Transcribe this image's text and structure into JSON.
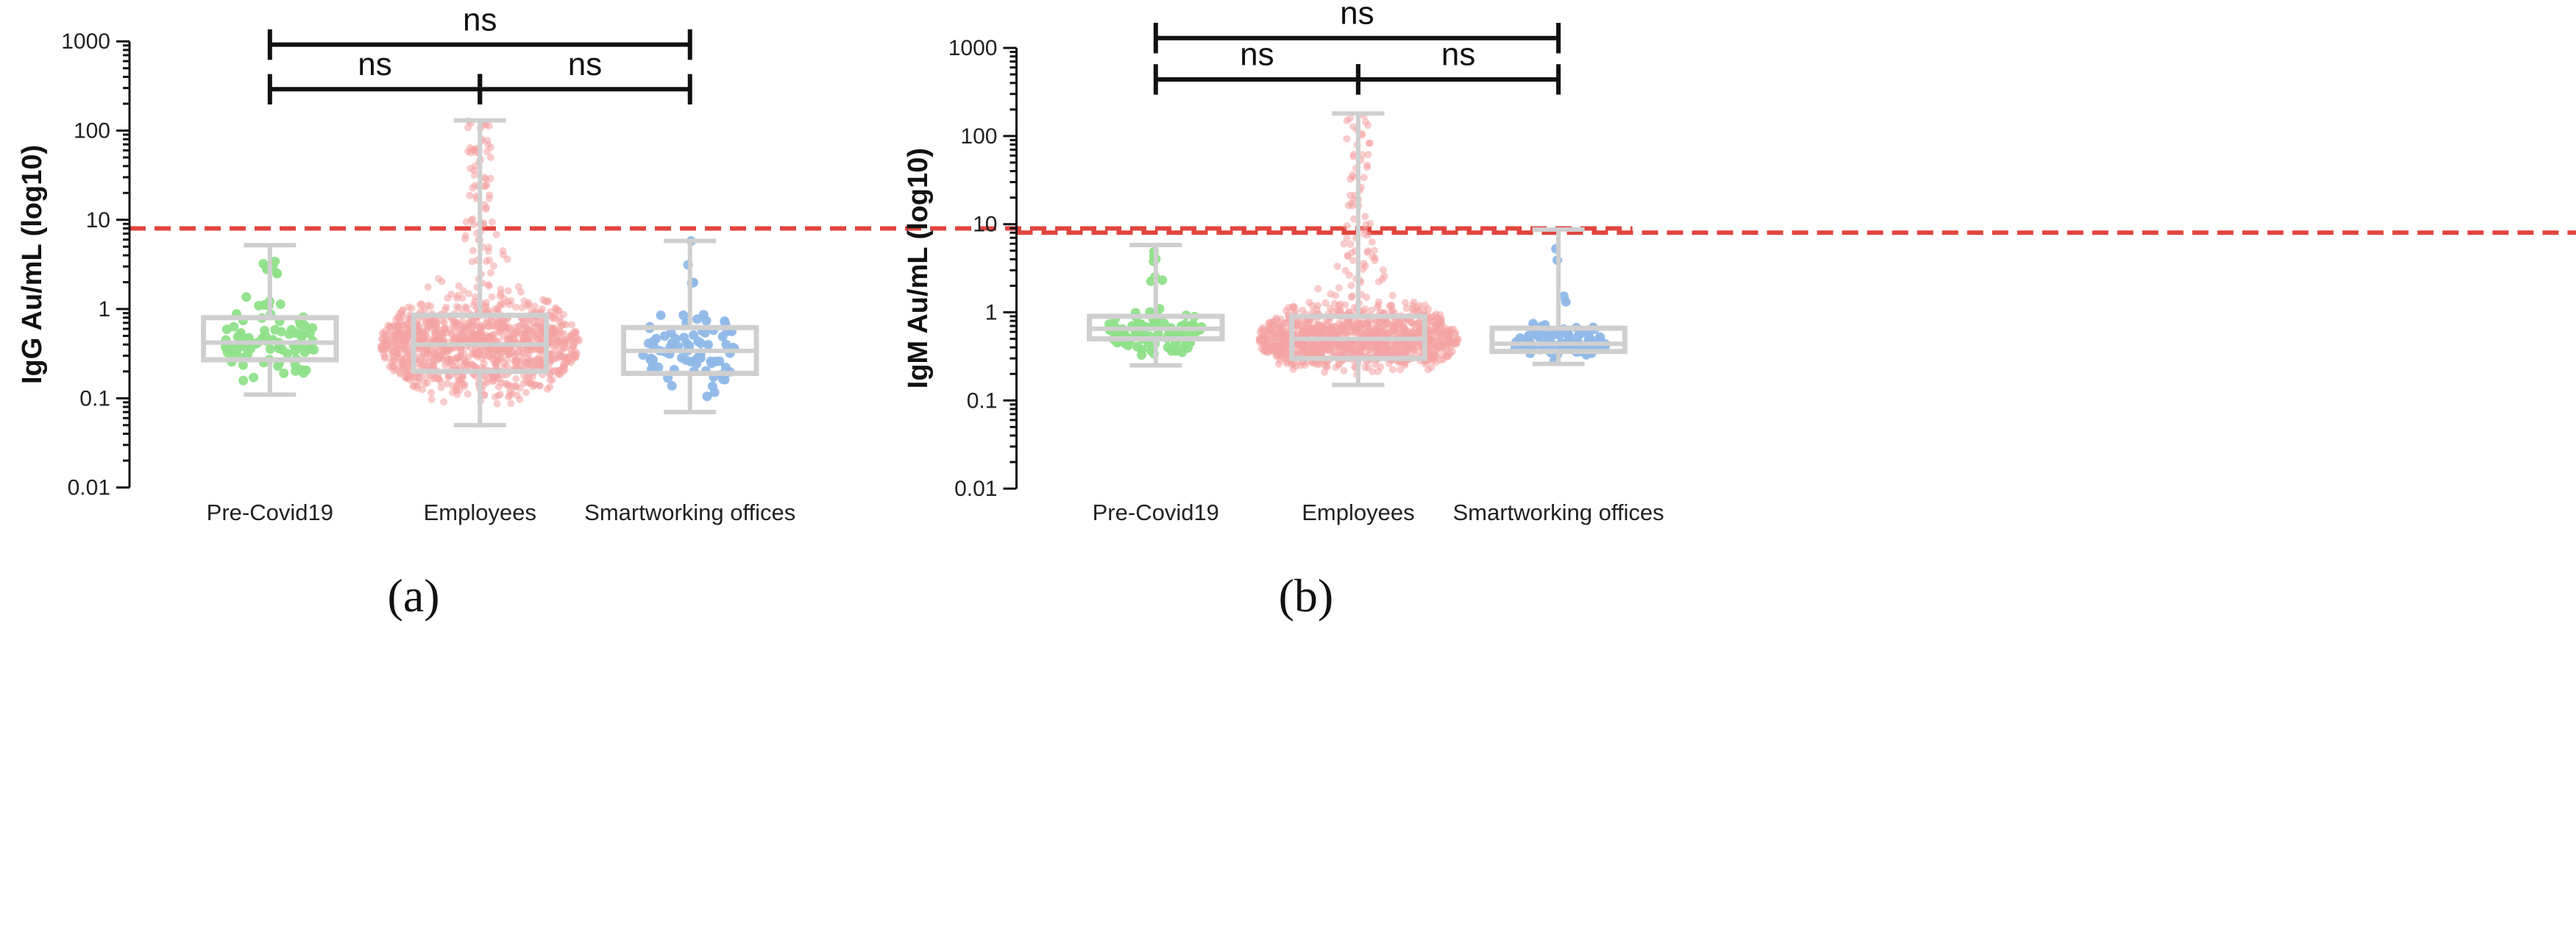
{
  "chart_data": [
    {
      "type": "box",
      "panel_label": "(a)",
      "ylabel": "IgG Au/mL (log10)",
      "yscale": "log",
      "ylim": [
        0.01,
        1000
      ],
      "y_ticks": [
        "0.01",
        "0.1",
        "1",
        "10",
        "100",
        "1000"
      ],
      "categories": [
        "Pre-Covid19",
        "Employees",
        "Smartworking offices"
      ],
      "series": [
        {
          "category": "Pre-Covid19",
          "color": "#8fe08a",
          "min": 0.11,
          "q1": 0.27,
          "median": 0.42,
          "q3": 0.8,
          "max": 5.2,
          "n_points": 90
        },
        {
          "category": "Employees",
          "color": "#f4a3a3",
          "min": 0.05,
          "q1": 0.2,
          "median": 0.4,
          "q3": 0.85,
          "max": 130,
          "n_points": 1200
        },
        {
          "category": "Smartworking offices",
          "color": "#8fb8e8",
          "min": 0.07,
          "q1": 0.19,
          "median": 0.34,
          "q3": 0.62,
          "max": 5.8,
          "n_points": 80
        }
      ],
      "cutoff": {
        "value": 8,
        "color": "#e0453e"
      },
      "comparisons": [
        {
          "label": "ns",
          "from": "Pre-Covid19",
          "to": "Employees"
        },
        {
          "label": "ns",
          "from": "Employees",
          "to": "Smartworking offices"
        },
        {
          "label": "ns",
          "from": "Pre-Covid19",
          "to": "Smartworking offices"
        }
      ]
    },
    {
      "type": "box",
      "panel_label": "(b)",
      "ylabel": "IgM Au/mL (log10)",
      "yscale": "log",
      "ylim": [
        0.01,
        1000
      ],
      "y_ticks": [
        "0.01",
        "0.1",
        "1",
        "10",
        "100",
        "1000"
      ],
      "categories": [
        "Pre-Covid19",
        "Employees",
        "Smartworking offices"
      ],
      "series": [
        {
          "category": "Pre-Covid19",
          "color": "#8fe08a",
          "min": 0.25,
          "q1": 0.5,
          "median": 0.65,
          "q3": 0.9,
          "max": 5.8,
          "n_points": 90
        },
        {
          "category": "Employees",
          "color": "#f4a3a3",
          "min": 0.15,
          "q1": 0.3,
          "median": 0.5,
          "q3": 0.9,
          "max": 180,
          "n_points": 1200
        },
        {
          "category": "Smartworking offices",
          "color": "#8fb8e8",
          "min": 0.26,
          "q1": 0.36,
          "median": 0.44,
          "q3": 0.66,
          "max": 8.7,
          "n_points": 80
        }
      ],
      "cutoff": {
        "value": 8,
        "color": "#e0453e"
      },
      "comparisons": [
        {
          "label": "ns",
          "from": "Pre-Covid19",
          "to": "Employees"
        },
        {
          "label": "ns",
          "from": "Employees",
          "to": "Smartworking offices"
        },
        {
          "label": "ns",
          "from": "Pre-Covid19",
          "to": "Smartworking offices"
        }
      ]
    }
  ]
}
